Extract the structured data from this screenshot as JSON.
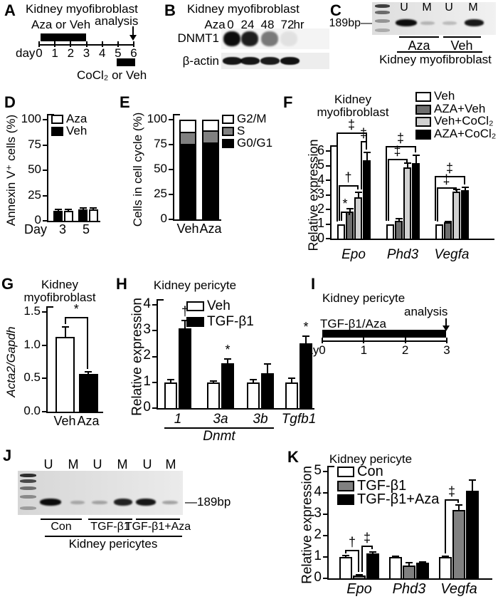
{
  "panels": {
    "A": {
      "letter": "A",
      "title": "Kidney myofibroblast",
      "treatment_label": "Aza or Veh",
      "analysis_label": "analysis",
      "day_prefix": "day",
      "day_ticks": [
        "0",
        "1",
        "2",
        "3",
        "4",
        "5",
        "6"
      ],
      "second_treatment_label": "CoCl₂ or Veh"
    },
    "B": {
      "letter": "B",
      "title": "Kidney myofibroblast",
      "header_prefix": "Aza",
      "timepoints": [
        "0",
        "24",
        "48",
        "72"
      ],
      "time_unit": "hr",
      "blots": [
        {
          "label": "DNMT1",
          "bands": [
            0.95,
            0.88,
            0.5,
            0.07
          ]
        },
        {
          "label": "β-actin",
          "bands": [
            0.9,
            0.9,
            0.88,
            0.92
          ]
        }
      ]
    },
    "C": {
      "letter": "C",
      "size_label": "189bp—",
      "lanes": [
        "U",
        "M",
        "U",
        "M"
      ],
      "bands": [
        0.95,
        0.22,
        0.2,
        0.9
      ],
      "groups": [
        "Aza",
        "Veh"
      ],
      "caption": "Kidney myofibroblast"
    },
    "D": {
      "letter": "D"
    },
    "E": {
      "letter": "E"
    },
    "F": {
      "letter": "F"
    },
    "G": {
      "letter": "G"
    },
    "H": {
      "letter": "H"
    },
    "I": {
      "letter": "I",
      "title": "Kidney pericyte",
      "treatment_label": "TGF-β1/Aza",
      "analysis_label": "analysis",
      "day_prefix": "day",
      "day_ticks": [
        "0",
        "1",
        "2",
        "3"
      ]
    },
    "J": {
      "letter": "J",
      "size_label": "—189bp",
      "lanes": [
        "U",
        "M",
        "U",
        "M",
        "U",
        "M"
      ],
      "bands": [
        0.95,
        0.25,
        0.28,
        0.85,
        0.9,
        0.3
      ],
      "groups": [
        "Con",
        "TGF-β1",
        "TGF-β1+Aza"
      ],
      "caption": "Kidney pericytes"
    },
    "K": {
      "letter": "K"
    }
  },
  "chart_data": [
    {
      "panel": "D",
      "type": "grouped-bar",
      "ylabel": "Annexin V⁺ cells (%)",
      "yticks": [
        "0",
        "25",
        "50",
        "75",
        "100"
      ],
      "ymax": 100,
      "categories": [
        "3",
        "5"
      ],
      "xprefix": "Day",
      "series": [
        {
          "name": "Veh",
          "color": "#000000",
          "values": [
            10,
            11
          ],
          "errors": [
            1,
            1.5
          ]
        },
        {
          "name": "Aza",
          "color": "#ffffff",
          "values": [
            10,
            11
          ],
          "errors": [
            1,
            2
          ]
        }
      ],
      "legend": [
        {
          "label": "Aza",
          "color": "#ffffff"
        },
        {
          "label": "Veh",
          "color": "#000000"
        }
      ]
    },
    {
      "panel": "E",
      "type": "stacked-bar",
      "ylabel": "Cells in cell cycle (%)",
      "yticks": [
        "0",
        "25",
        "50",
        "75",
        "100"
      ],
      "ymax": 100,
      "categories": [
        "Veh",
        "Aza"
      ],
      "series": [
        {
          "name": "G0/G1",
          "color": "#000000",
          "values": [
            76,
            77
          ]
        },
        {
          "name": "S",
          "color": "#808080",
          "values": [
            12,
            12
          ]
        },
        {
          "name": "G2/M",
          "color": "#ffffff",
          "values": [
            12,
            11
          ]
        }
      ],
      "legend": [
        {
          "label": "G2/M",
          "color": "#ffffff"
        },
        {
          "label": "S",
          "color": "#808080"
        },
        {
          "label": "G0/G1",
          "color": "#000000"
        }
      ]
    },
    {
      "panel": "F",
      "type": "grouped-bar",
      "title": [
        "Kidney",
        "myofibroblast"
      ],
      "ylabel": "Relative expression",
      "yticks": [
        "0",
        "1",
        "2",
        "3",
        "4",
        "5",
        "6"
      ],
      "ymax": 6,
      "categories": [
        "Epo",
        "Phd3",
        "Vegfa"
      ],
      "categories_italic": true,
      "series": [
        {
          "name": "Veh",
          "color": "#ffffff",
          "values": [
            1.0,
            1.0,
            1.0
          ],
          "errors": [
            0,
            0,
            0
          ]
        },
        {
          "name": "AZA+Veh",
          "color": "#6e6e6e",
          "values": [
            1.85,
            1.2,
            1.1
          ],
          "errors": [
            0.2,
            0.15,
            0.05
          ]
        },
        {
          "name": "Veh+CoCl₂",
          "color": "#d0d0d0",
          "values": [
            2.85,
            4.9,
            3.2
          ],
          "errors": [
            0.3,
            0.25,
            0.15
          ]
        },
        {
          "name": "AZA+CoCl₂",
          "color": "#000000",
          "values": [
            5.35,
            5.15,
            3.3
          ],
          "errors": [
            0.55,
            0.55,
            0.2
          ]
        }
      ],
      "legend": [
        {
          "label": "Veh",
          "color": "#ffffff"
        },
        {
          "label": "AZA+Veh",
          "color": "#6e6e6e"
        },
        {
          "label": "Veh+CoCl₂",
          "color": "#d0d0d0"
        },
        {
          "label": "AZA+CoCl₂",
          "color": "#000000"
        }
      ],
      "sig": [
        {
          "label": "*",
          "group": 0,
          "from": 0,
          "to": 1,
          "y": 1.85
        },
        {
          "label": "†",
          "group": 0,
          "from": 0,
          "to": 2,
          "y": 3.65
        },
        {
          "label": "‡",
          "group": 0,
          "from": 2,
          "to": 3,
          "y": 6.7
        },
        {
          "label": "‡",
          "group": 0,
          "from": 0,
          "to": 3,
          "y": 7.25
        },
        {
          "label": "‡",
          "group": 1,
          "from": 0,
          "to": 2,
          "y": 5.45
        },
        {
          "label": "‡",
          "group": 1,
          "from": 0,
          "to": 3,
          "y": 6.35
        },
        {
          "label": "‡",
          "group": 2,
          "from": 0,
          "to": 2,
          "y": 3.5
        },
        {
          "label": "‡",
          "group": 2,
          "from": 0,
          "to": 3,
          "y": 4.3
        }
      ]
    },
    {
      "panel": "G",
      "type": "grouped-bar",
      "percat": true,
      "title": [
        "Kidney",
        "myofibroblast"
      ],
      "ylabel": "Acta2/Gapdh",
      "ylabel_italic": true,
      "yticks": [
        "0.0",
        "0.5",
        "1.0",
        "1.5"
      ],
      "ymax": 1.5,
      "categories": [
        "Veh",
        "Aza"
      ],
      "series": [
        {
          "name": "Veh",
          "color": "#ffffff",
          "values": [
            1.12
          ],
          "errors": [
            0.16
          ]
        },
        {
          "name": "Aza",
          "color": "#000000",
          "values": [
            0.57
          ],
          "errors": [
            0.03
          ]
        }
      ],
      "sig": [
        {
          "label": "*",
          "group": 0,
          "from": 0,
          "to": 1,
          "y": 1.42
        }
      ]
    },
    {
      "panel": "H",
      "type": "grouped-bar",
      "title": [
        "Kidney pericyte"
      ],
      "ylabel": "Relative expression",
      "yticks": [
        "0",
        "1",
        "2",
        "3",
        "4"
      ],
      "ymax": 4,
      "categories": [
        "1",
        "3a",
        "3b",
        "Tgfb1"
      ],
      "categories_italic": true,
      "series": [
        {
          "name": "Veh",
          "color": "#ffffff",
          "values": [
            1.0,
            1.0,
            1.0,
            1.0
          ],
          "errors": [
            0.1,
            0.05,
            0.1,
            0.15
          ]
        },
        {
          "name": "TGF-β1",
          "color": "#000000",
          "values": [
            3.1,
            1.75,
            1.35,
            2.5
          ],
          "errors": [
            0.3,
            0.15,
            0.35,
            0.28
          ]
        }
      ],
      "legend": [
        {
          "label": "Veh",
          "color": "#ffffff"
        },
        {
          "label": "TGF-β1",
          "color": "#000000"
        }
      ],
      "marks": [
        {
          "label": "†",
          "group": 0,
          "series": 1
        },
        {
          "label": "*",
          "group": 1,
          "series": 1
        },
        {
          "label": "*",
          "group": 3,
          "series": 1
        }
      ],
      "axis_group_label": {
        "label": "Dnmt",
        "span": [
          0,
          2
        ],
        "italic": true
      }
    },
    {
      "panel": "K",
      "type": "grouped-bar",
      "title": [
        "Kidney pericyte"
      ],
      "ylabel": "Relative expression",
      "yticks": [
        "0",
        "1",
        "2",
        "3",
        "4",
        "5"
      ],
      "ymax": 5,
      "categories": [
        "Epo",
        "Phd3",
        "Vegfa"
      ],
      "categories_italic": true,
      "series": [
        {
          "name": "Con",
          "color": "#ffffff",
          "values": [
            1.0,
            1.0,
            1.0
          ],
          "errors": [
            0.08,
            0.02,
            0.02
          ]
        },
        {
          "name": "TGF-β1",
          "color": "#808080",
          "values": [
            0.15,
            0.6,
            3.2
          ],
          "errors": [
            0.03,
            0.12,
            0.25
          ]
        },
        {
          "name": "TGF-β1+Aza",
          "color": "#000000",
          "values": [
            1.18,
            0.72,
            4.1
          ],
          "errors": [
            0.04,
            0.05,
            0.5
          ]
        }
      ],
      "legend": [
        {
          "label": "Con",
          "color": "#ffffff"
        },
        {
          "label": "TGF-β1",
          "color": "#808080"
        },
        {
          "label": "TGF-β1+Aza",
          "color": "#000000"
        }
      ],
      "sig": [
        {
          "label": "†",
          "group": 0,
          "from": 0,
          "to": 1,
          "y": 1.35
        },
        {
          "label": "‡",
          "group": 0,
          "from": 1,
          "to": 2,
          "y": 1.55
        },
        {
          "label": "‡",
          "group": 2,
          "from": 0,
          "to": 1,
          "y": 3.7
        }
      ]
    }
  ]
}
